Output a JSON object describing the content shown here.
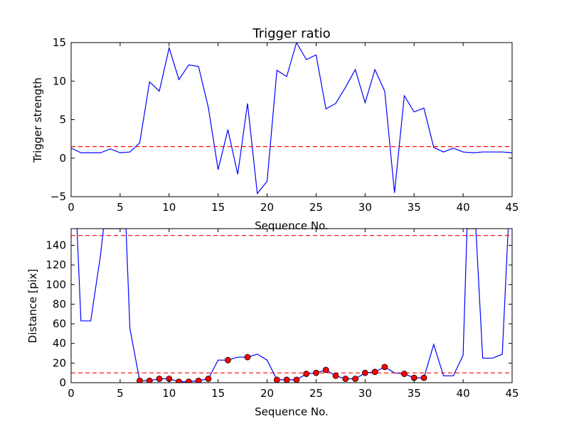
{
  "chart_data": [
    {
      "type": "line",
      "title": "Trigger ratio",
      "xlabel": "Sequence No.",
      "ylabel": "Trigger strength",
      "xlim": [
        0,
        45
      ],
      "ylim": [
        -5,
        15
      ],
      "xticks": [
        0,
        5,
        10,
        15,
        20,
        25,
        30,
        35,
        40,
        45
      ],
      "yticks": [
        -5,
        0,
        5,
        10,
        15
      ],
      "grid": false,
      "series": [
        {
          "color": "#0000ff",
          "x": [
            0,
            1,
            2,
            3,
            4,
            5,
            6,
            7,
            8,
            9,
            10,
            11,
            12,
            13,
            14,
            15,
            16,
            17,
            18,
            19,
            20,
            21,
            22,
            23,
            24,
            25,
            26,
            27,
            28,
            29,
            30,
            31,
            32,
            33,
            34,
            35,
            36,
            37,
            38,
            39,
            40,
            41,
            42,
            43,
            44,
            45
          ],
          "y": [
            1.3,
            0.7,
            0.7,
            0.7,
            1.2,
            0.7,
            0.8,
            2.0,
            9.9,
            8.7,
            14.3,
            10.2,
            12.1,
            11.9,
            6.6,
            -1.5,
            3.7,
            -2.1,
            7.1,
            -4.6,
            -3.0,
            11.4,
            10.6,
            15.0,
            12.8,
            13.4,
            6.4,
            7.1,
            9.2,
            11.5,
            7.2,
            11.5,
            8.7,
            -4.5,
            8.1,
            6.0,
            6.5,
            1.4,
            0.8,
            1.3,
            0.8,
            0.7,
            0.8,
            0.8,
            0.8,
            0.7
          ]
        }
      ],
      "hlines": [
        {
          "y": 1.5,
          "color": "#ff0000",
          "style": "dashed"
        }
      ]
    },
    {
      "type": "line",
      "title": "",
      "xlabel": "Sequence No.",
      "ylabel": "Distance [pix]",
      "xlim": [
        0,
        45
      ],
      "ylim": [
        0,
        157
      ],
      "xticks": [
        0,
        5,
        10,
        15,
        20,
        25,
        30,
        35,
        40,
        45
      ],
      "yticks": [
        0,
        20,
        40,
        60,
        80,
        100,
        120,
        140
      ],
      "grid": false,
      "series": [
        {
          "color": "#0000ff",
          "x": [
            0.6,
            1,
            2,
            3,
            3.3,
            5.6,
            6,
            7,
            8,
            9,
            10,
            11,
            12,
            13,
            14,
            15,
            16,
            17,
            18,
            19,
            20,
            21,
            22,
            23,
            24,
            25,
            26,
            27,
            28,
            29,
            30,
            31,
            32,
            33,
            34,
            35,
            36,
            37,
            38,
            39,
            40,
            40.4,
            41.3,
            42,
            43,
            44,
            44.6
          ],
          "y": [
            157,
            63,
            63,
            130,
            157,
            157,
            55,
            2,
            2,
            4,
            4,
            1,
            1,
            2,
            4,
            23,
            23,
            26,
            26,
            29,
            23,
            3,
            3,
            3,
            9,
            10,
            13,
            7,
            4,
            4,
            10,
            11,
            16,
            10,
            9,
            5,
            5,
            39,
            7,
            7,
            28,
            157,
            157,
            25,
            25,
            29,
            157
          ]
        },
        {
          "name": "",
          "color": "#ff0000",
          "marker": "circle",
          "x": [
            7,
            8,
            9,
            10,
            11,
            12,
            13,
            14,
            16,
            18,
            21,
            22,
            23,
            24,
            25,
            26,
            27,
            28,
            29,
            30,
            31,
            32,
            34,
            35,
            36
          ],
          "y": [
            2,
            2,
            4,
            4,
            1,
            1,
            2,
            4,
            23,
            26,
            3,
            3,
            3,
            9,
            10,
            13,
            7,
            4,
            4,
            10,
            11,
            16,
            9,
            5,
            5
          ]
        }
      ],
      "hlines": [
        {
          "y": 150,
          "color": "#ff0000",
          "style": "dashed"
        },
        {
          "y": 10,
          "color": "#ff0000",
          "style": "dashed"
        }
      ]
    }
  ]
}
